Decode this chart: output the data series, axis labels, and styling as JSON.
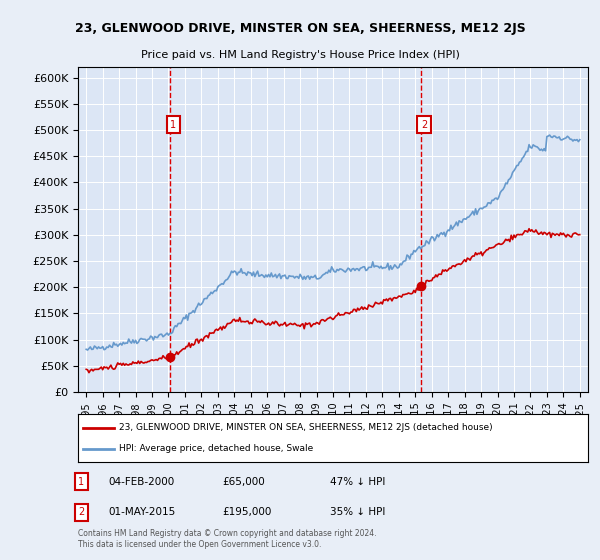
{
  "title": "23, GLENWOOD DRIVE, MINSTER ON SEA, SHEERNESS, ME12 2JS",
  "subtitle": "Price paid vs. HM Land Registry's House Price Index (HPI)",
  "background_color": "#e8eef7",
  "plot_bg_color": "#dce6f5",
  "legend_entry1": "23, GLENWOOD DRIVE, MINSTER ON SEA, SHEERNESS, ME12 2JS (detached house)",
  "legend_entry2": "HPI: Average price, detached house, Swale",
  "footnote": "Contains HM Land Registry data © Crown copyright and database right 2024.\nThis data is licensed under the Open Government Licence v3.0.",
  "marker1": {
    "label": "1",
    "date": 2000.09,
    "price": 65000,
    "text": "04-FEB-2000",
    "amount": "£65,000",
    "pct": "47% ↓ HPI"
  },
  "marker2": {
    "label": "2",
    "date": 2015.33,
    "price": 195000,
    "text": "01-MAY-2015",
    "amount": "£195,000",
    "pct": "35% ↓ HPI"
  },
  "ylim": [
    0,
    620000
  ],
  "yticks": [
    0,
    50000,
    100000,
    150000,
    200000,
    250000,
    300000,
    350000,
    400000,
    450000,
    500000,
    550000,
    600000
  ],
  "red_color": "#cc0000",
  "blue_color": "#6699cc",
  "vline_color": "#dd0000"
}
